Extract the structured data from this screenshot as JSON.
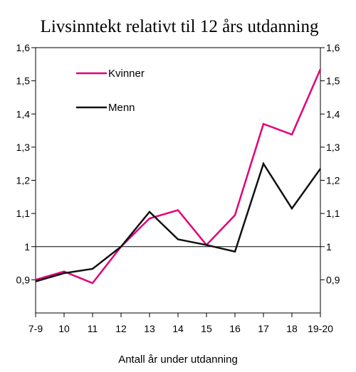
{
  "chart_data": {
    "type": "line",
    "title": "Livsinntekt relativt til 12 års utdanning",
    "xlabel": "Antall år under utdanning",
    "ylabel": "",
    "categories": [
      "7-9",
      "10",
      "11",
      "12",
      "13",
      "14",
      "15",
      "16",
      "17",
      "18",
      "19-20"
    ],
    "ylim": [
      0.8,
      1.6
    ],
    "yticks": [
      "0,9",
      "1",
      "1,1",
      "1,2",
      "1,3",
      "1,4",
      "1,5",
      "1,6"
    ],
    "ytick_values": [
      0.9,
      1.0,
      1.1,
      1.2,
      1.3,
      1.4,
      1.5,
      1.6
    ],
    "reference_line": 1.0,
    "grid": false,
    "legend_position": "top-left",
    "series": [
      {
        "name": "Kvinner",
        "color": "#e0007a",
        "values": [
          0.9,
          0.925,
          0.89,
          1.0,
          1.085,
          1.11,
          1.005,
          1.095,
          1.37,
          1.338,
          1.535
        ]
      },
      {
        "name": "Menn",
        "color": "#111111",
        "values": [
          0.895,
          0.92,
          0.933,
          1.0,
          1.105,
          1.022,
          1.005,
          0.985,
          1.25,
          1.115,
          1.235
        ]
      }
    ]
  }
}
